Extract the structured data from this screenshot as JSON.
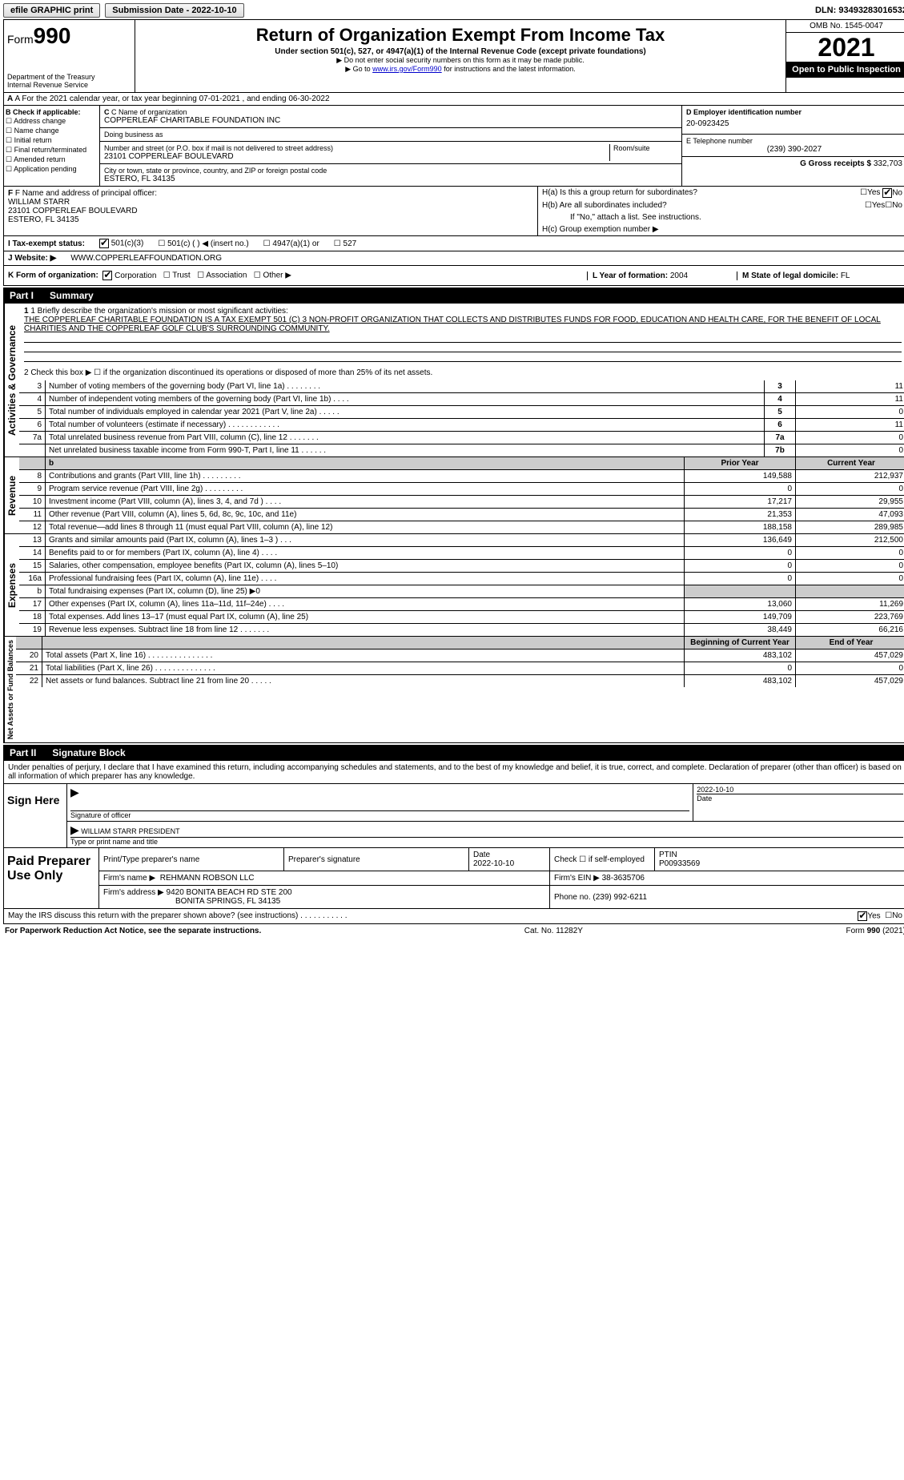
{
  "topbar": {
    "efile": "efile GRAPHIC print",
    "submission_label": "Submission Date - 2022-10-10",
    "dln": "DLN: 93493283016532"
  },
  "header": {
    "form_prefix": "Form",
    "form_number": "990",
    "dept": "Department of the Treasury",
    "irs": "Internal Revenue Service",
    "title": "Return of Organization Exempt From Income Tax",
    "subtitle": "Under section 501(c), 527, or 4947(a)(1) of the Internal Revenue Code (except private foundations)",
    "ssn_note": "▶ Do not enter social security numbers on this form as it may be made public.",
    "goto_pre": "▶ Go to ",
    "goto_link": "www.irs.gov/Form990",
    "goto_post": " for instructions and the latest information.",
    "omb": "OMB No. 1545-0047",
    "year": "2021",
    "open": "Open to Public Inspection"
  },
  "rowA": {
    "text": "A For the 2021 calendar year, or tax year beginning 07-01-2021    , and ending 06-30-2022"
  },
  "colB": {
    "hdr": "B Check if applicable:",
    "items": [
      "Address change",
      "Name change",
      "Initial return",
      "Final return/terminated",
      "Amended return",
      "Application pending"
    ]
  },
  "colC": {
    "name_lbl": "C Name of organization",
    "name": "COPPERLEAF CHARITABLE FOUNDATION INC",
    "dba_lbl": "Doing business as",
    "dba": "",
    "street_lbl": "Number and street (or P.O. box if mail is not delivered to street address)",
    "room_lbl": "Room/suite",
    "street": "23101 COPPERLEAF BOULEVARD",
    "city_lbl": "City or town, state or province, country, and ZIP or foreign postal code",
    "city": "ESTERO, FL  34135"
  },
  "colDE": {
    "d_lbl": "D Employer identification number",
    "d_val": "20-0923425",
    "e_lbl": "E Telephone number",
    "e_val": "(239) 390-2027",
    "g_lbl": "G Gross receipts $",
    "g_val": "332,703"
  },
  "rowF": {
    "lbl": "F Name and address of principal officer:",
    "name": "WILLIAM STARR",
    "addr1": "23101 COPPERLEAF BOULEVARD",
    "addr2": "ESTERO, FL  34135"
  },
  "rowH": {
    "ha": "H(a)  Is this a group return for subordinates?",
    "ha_ans_yes": "Yes",
    "ha_ans_no": "No",
    "hb": "H(b)  Are all subordinates included?",
    "hb_note": "If \"No,\" attach a list. See instructions.",
    "hc": "H(c)  Group exemption number ▶"
  },
  "rowI": {
    "lbl": "I  Tax-exempt status:",
    "o1": "501(c)(3)",
    "o2": "501(c) (   ) ◀ (insert no.)",
    "o3": "4947(a)(1) or",
    "o4": "527"
  },
  "rowJ": {
    "lbl": "J  Website: ▶",
    "val": "WWW.COPPERLEAFFOUNDATION.ORG"
  },
  "rowK": {
    "lbl": "K Form of organization:",
    "o1": "Corporation",
    "o2": "Trust",
    "o3": "Association",
    "o4": "Other ▶",
    "l_lbl": "L Year of formation:",
    "l_val": "2004",
    "m_lbl": "M State of legal domicile:",
    "m_val": "FL"
  },
  "partI": {
    "label": "Part I",
    "title": "Summary",
    "line1_lbl": "1  Briefly describe the organization's mission or most significant activities:",
    "line1_txt": "THE COPPERLEAF CHARITABLE FOUNDATION IS A TAX EXEMPT 501 (C) 3 NON-PROFIT ORGANIZATION THAT COLLECTS AND DISTRIBUTES FUNDS FOR FOOD, EDUCATION AND HEALTH CARE, FOR THE BENEFIT OF LOCAL CHARITIES AND THE COPPERLEAF GOLF CLUB'S SURROUNDING COMMUNITY.",
    "line2": "2   Check this box ▶ ☐ if the organization discontinued its operations or disposed of more than 25% of its net assets.",
    "gov": [
      {
        "n": "3",
        "t": "Number of voting members of the governing body (Part VI, line 1a)   .    .    .    .    .    .    .    .",
        "b": "3",
        "v": "11"
      },
      {
        "n": "4",
        "t": "Number of independent voting members of the governing body (Part VI, line 1b)   .    .    .    .",
        "b": "4",
        "v": "11"
      },
      {
        "n": "5",
        "t": "Total number of individuals employed in calendar year 2021 (Part V, line 2a)   .    .    .    .    .",
        "b": "5",
        "v": "0"
      },
      {
        "n": "6",
        "t": "Total number of volunteers (estimate if necessary)    .    .    .    .    .    .    .    .    .    .    .    .",
        "b": "6",
        "v": "11"
      },
      {
        "n": "7a",
        "t": "Total unrelated business revenue from Part VIII, column (C), line 12   .    .    .    .    .    .    .",
        "b": "7a",
        "v": "0"
      },
      {
        "n": "",
        "t": "Net unrelated business taxable income from Form 990-T, Part I, line 11    .    .    .    .    .    .",
        "b": "7b",
        "v": "0"
      }
    ],
    "hdr_prior": "Prior Year",
    "hdr_curr": "Current Year",
    "rev_label": "Revenue",
    "rev": [
      {
        "n": "8",
        "t": "Contributions and grants (Part VIII, line 1h)    .    .    .    .    .    .    .    .    .",
        "p": "149,588",
        "c": "212,937"
      },
      {
        "n": "9",
        "t": "Program service revenue (Part VIII, line 2g)    .    .    .    .    .    .    .    .    .",
        "p": "0",
        "c": "0"
      },
      {
        "n": "10",
        "t": "Investment income (Part VIII, column (A), lines 3, 4, and 7d )   .    .    .    .",
        "p": "17,217",
        "c": "29,955"
      },
      {
        "n": "11",
        "t": "Other revenue (Part VIII, column (A), lines 5, 6d, 8c, 9c, 10c, and 11e)",
        "p": "21,353",
        "c": "47,093"
      },
      {
        "n": "12",
        "t": "Total revenue—add lines 8 through 11 (must equal Part VIII, column (A), line 12)",
        "p": "188,158",
        "c": "289,985"
      }
    ],
    "exp_label": "Expenses",
    "exp": [
      {
        "n": "13",
        "t": "Grants and similar amounts paid (Part IX, column (A), lines 1–3 )   .    .    .",
        "p": "136,649",
        "c": "212,500"
      },
      {
        "n": "14",
        "t": "Benefits paid to or for members (Part IX, column (A), line 4)   .    .    .    .",
        "p": "0",
        "c": "0"
      },
      {
        "n": "15",
        "t": "Salaries, other compensation, employee benefits (Part IX, column (A), lines 5–10)",
        "p": "0",
        "c": "0"
      },
      {
        "n": "16a",
        "t": "Professional fundraising fees (Part IX, column (A), line 11e)   .    .    .    .",
        "p": "0",
        "c": "0"
      },
      {
        "n": "b",
        "t": "Total fundraising expenses (Part IX, column (D), line 25) ▶0",
        "p": "",
        "c": "",
        "gray": true
      },
      {
        "n": "17",
        "t": "Other expenses (Part IX, column (A), lines 11a–11d, 11f–24e)    .    .    .    .",
        "p": "13,060",
        "c": "11,269"
      },
      {
        "n": "18",
        "t": "Total expenses. Add lines 13–17 (must equal Part IX, column (A), line 25)",
        "p": "149,709",
        "c": "223,769"
      },
      {
        "n": "19",
        "t": "Revenue less expenses. Subtract line 18 from line 12   .    .    .    .    .    .    .",
        "p": "38,449",
        "c": "66,216"
      }
    ],
    "na_label": "Net Assets or Fund Balances",
    "hdr_beg": "Beginning of Current Year",
    "hdr_end": "End of Year",
    "na": [
      {
        "n": "20",
        "t": "Total assets (Part X, line 16)   .    .    .    .    .    .    .    .    .    .    .    .    .    .    .",
        "p": "483,102",
        "c": "457,029"
      },
      {
        "n": "21",
        "t": "Total liabilities (Part X, line 26)   .    .    .    .    .    .    .    .    .    .    .    .    .    .",
        "p": "0",
        "c": "0"
      },
      {
        "n": "22",
        "t": "Net assets or fund balances. Subtract line 21 from line 20   .    .    .    .    .",
        "p": "483,102",
        "c": "457,029"
      }
    ]
  },
  "partII": {
    "label": "Part II",
    "title": "Signature Block",
    "perjury": "Under penalties of perjury, I declare that I have examined this return, including accompanying schedules and statements, and to the best of my knowledge and belief, it is true, correct, and complete. Declaration of preparer (other than officer) is based on all information of which preparer has any knowledge.",
    "sign_here": "Sign Here",
    "sig_officer_lbl": "Signature of officer",
    "sig_date": "2022-10-10",
    "sig_date_lbl": "Date",
    "officer_name": "WILLIAM STARR  PRESIDENT",
    "officer_name_lbl": "Type or print name and title",
    "paid": "Paid Preparer Use Only",
    "p_name_lbl": "Print/Type preparer's name",
    "p_name": "",
    "p_sig_lbl": "Preparer's signature",
    "p_date": "2022-10-10",
    "p_date_lbl": "Date",
    "p_self_lbl": "Check ☐ if self-employed",
    "p_ptin_lbl": "PTIN",
    "p_ptin": "P00933569",
    "firm_name_lbl": "Firm's name    ▶",
    "firm_name": "REHMANN ROBSON LLC",
    "firm_ein_lbl": "Firm's EIN ▶",
    "firm_ein": "38-3635706",
    "firm_addr_lbl": "Firm's address ▶",
    "firm_addr1": "9420 BONITA BEACH RD STE 200",
    "firm_addr2": "BONITA SPRINGS, FL  34135",
    "firm_phone_lbl": "Phone no.",
    "firm_phone": "(239) 992-6211",
    "discuss": "May the IRS discuss this return with the preparer shown above? (see instructions)   .    .    .    .    .    .    .    .    .    .    .",
    "discuss_yes": "Yes",
    "discuss_no": "No"
  },
  "footer": {
    "left": "For Paperwork Reduction Act Notice, see the separate instructions.",
    "mid": "Cat. No. 11282Y",
    "right": "Form 990 (2021)"
  },
  "gov_label": "Activities & Governance"
}
